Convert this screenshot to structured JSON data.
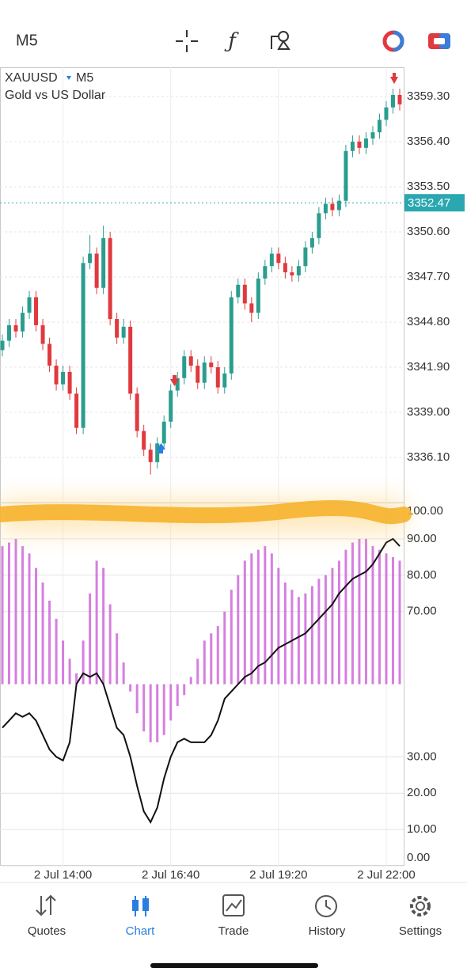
{
  "toolbar": {
    "timeframe": "M5"
  },
  "nav": {
    "items": [
      "Quotes",
      "Chart",
      "Trade",
      "History",
      "Settings"
    ]
  },
  "chart_data": [
    {
      "type": "candlestick",
      "symbol": "XAUUSD",
      "timeframe": "M5",
      "description": "Gold vs US Dollar",
      "up_color": "#2a9d8f",
      "down_color": "#e0393e",
      "open": [
        3343.0,
        3343.6,
        3344.6,
        3344.2,
        3345.4,
        3346.4,
        3344.6,
        3343.4,
        3342.0,
        3340.8,
        3341.6,
        3340.2,
        3338.0,
        3348.6,
        3349.2,
        3347.0,
        3350.2,
        3345.0,
        3343.8,
        3344.5,
        3340.2,
        3337.8,
        3336.6,
        3335.8,
        3337.0,
        3338.4,
        3340.4,
        3341.2,
        3342.6,
        3342.0,
        3340.9,
        3342.2,
        3341.9,
        3340.6,
        3341.5,
        3346.4,
        3347.2,
        3346.0,
        3345.4,
        3347.6,
        3348.4,
        3349.2,
        3348.6,
        3348.0,
        3347.8,
        3348.4,
        3349.6,
        3350.2,
        3351.8,
        3352.4,
        3352.0,
        3352.6,
        3355.8,
        3356.4,
        3356.0,
        3356.6,
        3357.0,
        3357.8,
        3358.6,
        3359.4
      ],
      "high": [
        3344.0,
        3345.0,
        3345.0,
        3345.8,
        3346.8,
        3346.8,
        3345.0,
        3343.8,
        3342.4,
        3342.0,
        3342.0,
        3340.6,
        3349.0,
        3350.4,
        3349.6,
        3351.0,
        3350.6,
        3345.4,
        3345.0,
        3344.9,
        3340.6,
        3338.2,
        3337.0,
        3337.4,
        3338.8,
        3340.8,
        3341.6,
        3343.0,
        3343.0,
        3342.4,
        3342.6,
        3342.6,
        3342.3,
        3341.9,
        3346.8,
        3347.6,
        3347.6,
        3346.4,
        3348.0,
        3348.8,
        3349.6,
        3349.6,
        3349.0,
        3348.4,
        3348.8,
        3350.0,
        3350.6,
        3352.2,
        3352.8,
        3352.8,
        3353.0,
        3356.2,
        3356.8,
        3356.8,
        3357.0,
        3357.4,
        3358.2,
        3359.0,
        3359.8,
        3359.8
      ],
      "low": [
        3342.6,
        3343.2,
        3343.8,
        3343.8,
        3345.0,
        3344.2,
        3343.0,
        3341.6,
        3340.4,
        3340.4,
        3339.8,
        3337.6,
        3337.6,
        3348.2,
        3346.6,
        3346.6,
        3344.6,
        3343.4,
        3343.4,
        3339.8,
        3337.4,
        3336.2,
        3335.0,
        3335.4,
        3336.6,
        3338.0,
        3340.0,
        3340.8,
        3341.6,
        3340.5,
        3340.5,
        3341.5,
        3340.2,
        3340.2,
        3341.1,
        3346.0,
        3345.6,
        3344.8,
        3345.0,
        3347.2,
        3348.0,
        3348.2,
        3347.6,
        3347.4,
        3347.4,
        3348.0,
        3349.2,
        3349.8,
        3351.4,
        3351.6,
        3351.6,
        3352.2,
        3355.4,
        3355.6,
        3355.6,
        3356.2,
        3356.6,
        3357.4,
        3358.2,
        3358.4
      ],
      "close": [
        3343.6,
        3344.6,
        3344.2,
        3345.4,
        3346.4,
        3344.6,
        3343.4,
        3342.0,
        3340.8,
        3341.6,
        3340.2,
        3338.0,
        3348.6,
        3349.2,
        3347.0,
        3350.2,
        3345.0,
        3343.8,
        3344.5,
        3340.2,
        3337.8,
        3336.6,
        3335.8,
        3337.0,
        3338.4,
        3340.4,
        3341.2,
        3342.6,
        3342.0,
        3340.9,
        3342.2,
        3341.9,
        3340.6,
        3341.5,
        3346.4,
        3347.2,
        3346.0,
        3345.4,
        3347.6,
        3348.4,
        3349.2,
        3348.6,
        3348.0,
        3347.8,
        3348.4,
        3349.6,
        3350.2,
        3351.8,
        3352.4,
        3352.0,
        3352.6,
        3355.8,
        3356.4,
        3356.0,
        3356.6,
        3357.0,
        3357.8,
        3358.6,
        3359.4,
        3358.8
      ],
      "current_price": 3352.47,
      "ylim": [
        3333.2,
        3361.18
      ],
      "yticks": [
        {
          "value": 3359.3,
          "label": "3359.30"
        },
        {
          "value": 3356.4,
          "label": "3356.40"
        },
        {
          "value": 3353.5,
          "label": "3353.50"
        },
        {
          "value": 3350.6,
          "label": "3350.60"
        },
        {
          "value": 3347.7,
          "label": "3347.70"
        },
        {
          "value": 3344.8,
          "label": "3344.80"
        },
        {
          "value": 3341.9,
          "label": "3341.90"
        },
        {
          "value": 3339.0,
          "label": "3339.00"
        },
        {
          "value": 3336.1,
          "label": "3336.10"
        }
      ],
      "grid": true
    },
    {
      "type": "bar",
      "categories": [
        null,
        null,
        null,
        null,
        null,
        null,
        null,
        null,
        null,
        "2 Jul 14:00",
        null,
        null,
        null,
        null,
        null,
        null,
        null,
        null,
        null,
        null,
        null,
        null,
        null,
        null,
        null,
        "2 Jul 16:40",
        null,
        null,
        null,
        null,
        null,
        null,
        null,
        null,
        null,
        null,
        null,
        null,
        null,
        null,
        null,
        "2 Jul 19:20",
        null,
        null,
        null,
        null,
        null,
        null,
        null,
        null,
        null,
        null,
        null,
        null,
        null,
        null,
        null,
        "2 Jul 22:00",
        null,
        null
      ],
      "series": [
        {
          "type": "bar",
          "color": "#cc5fd8",
          "values": [
            88,
            89,
            90,
            88,
            86,
            82,
            78,
            73,
            68,
            62,
            57,
            53,
            62,
            75,
            84,
            82,
            72,
            64,
            56,
            48,
            42,
            37,
            34,
            34,
            36,
            40,
            44,
            47,
            52,
            57,
            62,
            64,
            66,
            70,
            76,
            80,
            84,
            86,
            87,
            88,
            86,
            82,
            78,
            76,
            74,
            75,
            77,
            79,
            80,
            82,
            84,
            87,
            89,
            90,
            90,
            88,
            87,
            86,
            85,
            84
          ]
        },
        {
          "type": "line",
          "color": "#111111",
          "values": [
            38,
            40,
            42,
            41,
            42,
            40,
            36,
            32,
            30,
            29,
            34,
            50,
            53,
            52,
            53,
            50,
            44,
            38,
            36,
            30,
            22,
            15,
            12,
            16,
            24,
            30,
            34,
            35,
            34,
            34,
            34,
            36,
            40,
            46,
            48,
            50,
            52,
            53,
            55,
            56,
            58,
            60,
            61,
            62,
            63,
            64,
            66,
            68,
            70,
            72,
            75,
            77,
            79,
            80,
            81,
            83,
            86,
            89,
            90,
            88
          ]
        }
      ],
      "ylim": [
        0,
        100
      ],
      "yticks": [
        {
          "value": 100,
          "label": "100.00"
        },
        {
          "value": 90,
          "label": "90.00"
        },
        {
          "value": 80,
          "label": "80.00"
        },
        {
          "value": 70,
          "label": "70.00"
        },
        {
          "value": 30,
          "label": "30.00"
        },
        {
          "value": 20,
          "label": "20.00"
        },
        {
          "value": 10,
          "label": "10.00"
        },
        {
          "value": 0,
          "label": "0.00"
        }
      ],
      "grid": true
    }
  ]
}
